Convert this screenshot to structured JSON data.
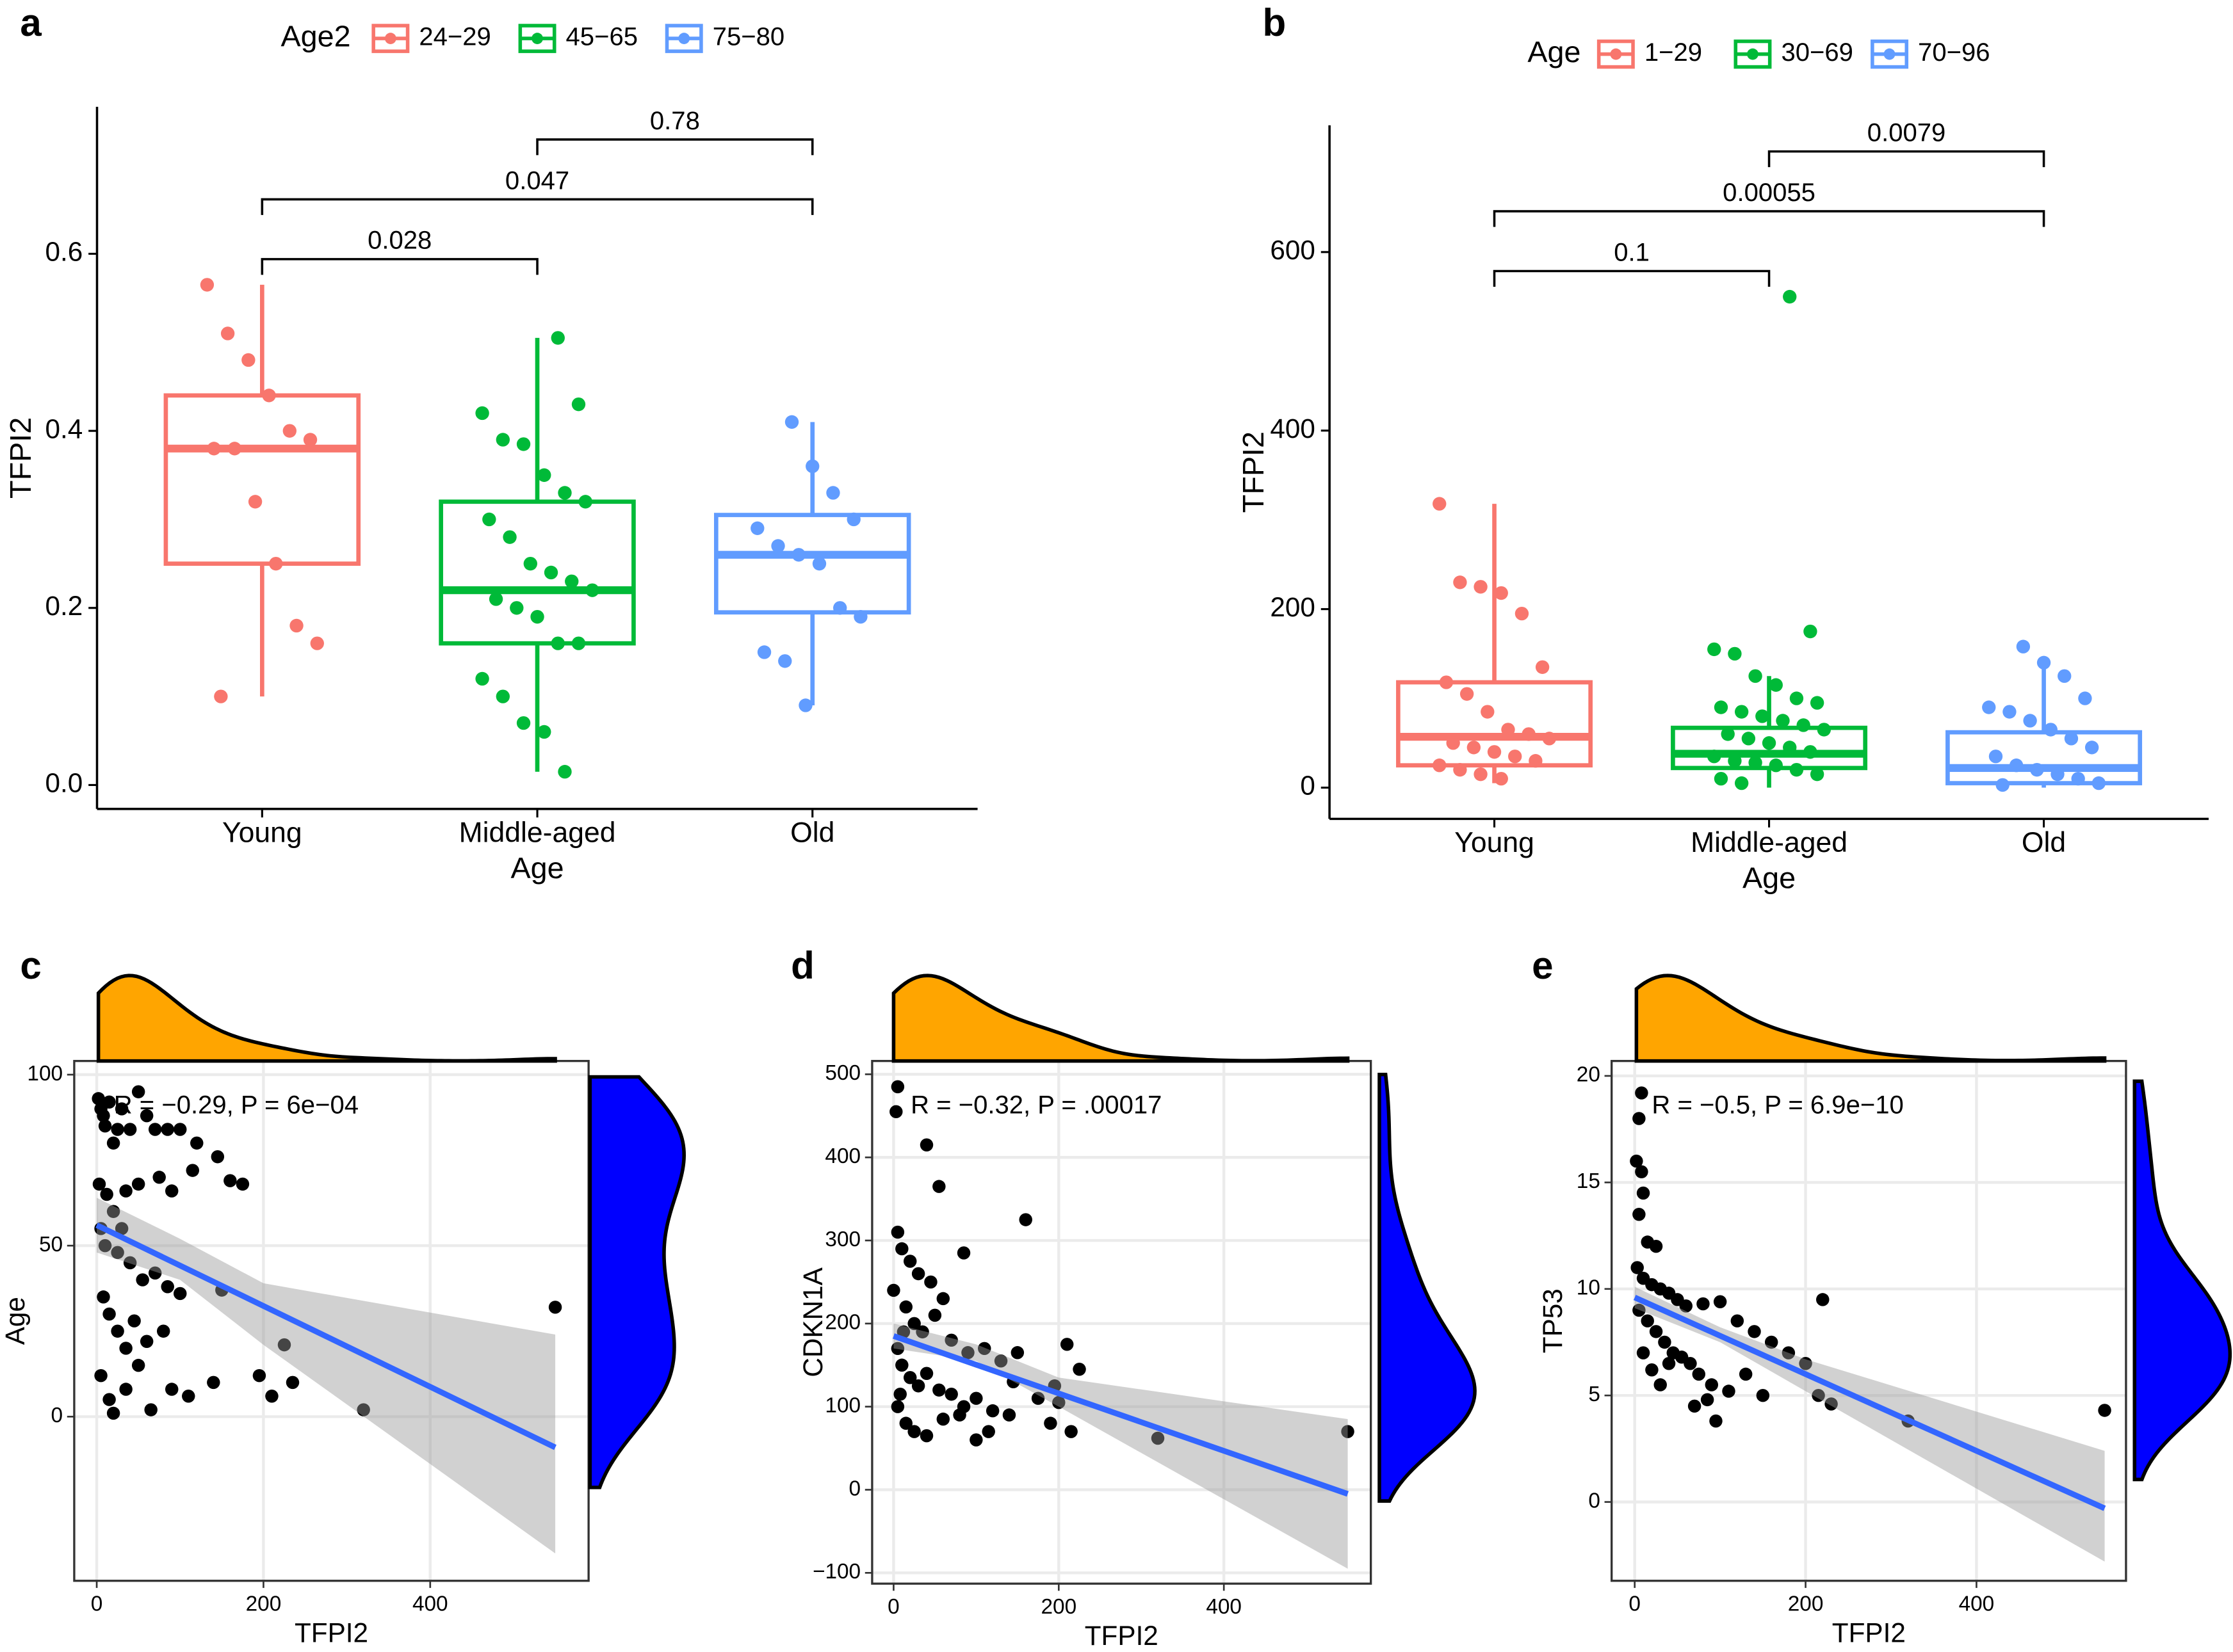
{
  "chart_data": [
    {
      "type": "box",
      "panel": "a",
      "xlabel": "Age",
      "ylabel": "TFPI2",
      "legend_title": "Age2",
      "categories": [
        "Young",
        "Middle-aged",
        "Old"
      ],
      "ylim": [
        -0.027,
        0.766
      ],
      "yticks": [
        {
          "value": 0,
          "label": "0.0"
        },
        0.2,
        0.4,
        0.6
      ],
      "series": [
        {
          "name": "24−29",
          "color": "#F8766D",
          "box": {
            "whislo": 0.1,
            "q1": 0.25,
            "med": 0.38,
            "q3": 0.44,
            "whishi": 0.565
          },
          "points": [
            0.565,
            0.51,
            0.48,
            0.44,
            0.4,
            0.39,
            0.38,
            0.38,
            0.32,
            0.25,
            0.18,
            0.16,
            0.1
          ]
        },
        {
          "name": "45−65",
          "color": "#00BA38",
          "box": {
            "whislo": 0.015,
            "q1": 0.16,
            "med": 0.22,
            "q3": 0.32,
            "whishi": 0.505
          },
          "points": [
            0.505,
            0.43,
            0.42,
            0.39,
            0.385,
            0.35,
            0.33,
            0.32,
            0.3,
            0.28,
            0.25,
            0.24,
            0.23,
            0.22,
            0.21,
            0.2,
            0.19,
            0.16,
            0.16,
            0.12,
            0.1,
            0.07,
            0.06,
            0.015
          ]
        },
        {
          "name": "75−80",
          "color": "#619CFF",
          "box": {
            "whislo": 0.09,
            "q1": 0.195,
            "med": 0.26,
            "q3": 0.305,
            "whishi": 0.41
          },
          "points": [
            0.41,
            0.36,
            0.33,
            0.3,
            0.29,
            0.27,
            0.26,
            0.25,
            0.2,
            0.19,
            0.15,
            0.14,
            0.09
          ]
        }
      ],
      "comparisons": [
        {
          "from": "Young",
          "to": "Middle-aged",
          "label": "0.028"
        },
        {
          "from": "Young",
          "to": "Old",
          "label": "0.047"
        },
        {
          "from": "Middle-aged",
          "to": "Old",
          "label": "0.78"
        }
      ]
    },
    {
      "type": "box",
      "panel": "b",
      "xlabel": "Age",
      "ylabel": "TFPI2",
      "legend_title": "Age",
      "categories": [
        "Young",
        "Middle-aged",
        "Old"
      ],
      "ylim": [
        -35,
        742
      ],
      "yticks": [
        0,
        200,
        400,
        600
      ],
      "series": [
        {
          "name": "1−29",
          "color": "#F8766D",
          "box": {
            "whislo": 5,
            "q1": 25,
            "med": 57,
            "q3": 118,
            "whishi": 318
          },
          "points": [
            318,
            230,
            225,
            218,
            195,
            135,
            118,
            105,
            85,
            65,
            60,
            55,
            50,
            45,
            40,
            35,
            30,
            25,
            20,
            15,
            10
          ]
        },
        {
          "name": "30−69",
          "color": "#00BA38",
          "box": {
            "whislo": 0,
            "q1": 22,
            "med": 38,
            "q3": 67,
            "whishi": 125
          },
          "points": [
            550,
            175,
            155,
            150,
            125,
            115,
            100,
            95,
            90,
            85,
            80,
            75,
            70,
            65,
            60,
            55,
            50,
            45,
            40,
            35,
            30,
            28,
            25,
            20,
            15,
            10,
            5
          ]
        },
        {
          "name": "70−96",
          "color": "#619CFF",
          "box": {
            "whislo": 0,
            "q1": 5,
            "med": 22,
            "q3": 62,
            "whishi": 140
          },
          "points": [
            158,
            140,
            125,
            100,
            90,
            85,
            75,
            65,
            55,
            45,
            35,
            25,
            20,
            15,
            10,
            5,
            3
          ]
        }
      ],
      "comparisons": [
        {
          "from": "Young",
          "to": "Middle-aged",
          "label": "0.1"
        },
        {
          "from": "Young",
          "to": "Old",
          "label": "0.00055"
        },
        {
          "from": "Middle-aged",
          "to": "Old",
          "label": "0.0079"
        }
      ]
    },
    {
      "type": "scatter",
      "panel": "c",
      "xlabel": "TFPI2",
      "ylabel": "Age",
      "annotation": "R = −0.29, P = 6e−04",
      "color": "#000000",
      "grid": true,
      "marginal_colors": {
        "x": "#FFA500",
        "y": "#0000FF"
      },
      "xlim": [
        -27,
        590
      ],
      "ylim": [
        -48,
        104
      ],
      "xticks": [
        0,
        200,
        400
      ],
      "yticks": [
        0,
        50,
        100
      ],
      "x": [
        2,
        5,
        8,
        10,
        15,
        20,
        25,
        30,
        40,
        50,
        60,
        70,
        85,
        100,
        120,
        145,
        160,
        175,
        3,
        12,
        20,
        35,
        50,
        75,
        90,
        115,
        5,
        10,
        25,
        30,
        40,
        55,
        70,
        85,
        100,
        150,
        8,
        15,
        25,
        35,
        45,
        60,
        80,
        5,
        15,
        20,
        35,
        50,
        65,
        90,
        110,
        140,
        195,
        210,
        225,
        235,
        320,
        550
      ],
      "y": [
        93,
        90,
        88,
        85,
        92,
        80,
        84,
        90,
        84,
        95,
        88,
        84,
        84,
        84,
        80,
        76,
        69,
        68,
        68,
        65,
        60,
        66,
        68,
        70,
        66,
        72,
        55,
        50,
        48,
        55,
        45,
        40,
        42,
        38,
        36,
        37,
        35,
        30,
        25,
        20,
        28,
        22,
        25,
        12,
        5,
        1,
        8,
        15,
        2,
        8,
        6,
        10,
        12,
        6,
        21,
        10,
        2,
        32
      ],
      "fit": {
        "color": "#3366FF",
        "x": [
          0,
          550
        ],
        "y": [
          56,
          -9
        ]
      },
      "ci": {
        "color": "#999999",
        "x": [
          0,
          100,
          200,
          550
        ],
        "lower": [
          48,
          40,
          21,
          -40
        ],
        "upper": [
          64,
          52,
          39,
          24
        ]
      }
    },
    {
      "type": "scatter",
      "panel": "d",
      "xlabel": "TFPI2",
      "ylabel": "CDKN1A",
      "annotation": "R = −0.32, P = .00017",
      "color": "#000000",
      "grid": true,
      "marginal_colors": {
        "x": "#FFA500",
        "y": "#0000FF"
      },
      "xlim": [
        -26,
        578
      ],
      "ylim": [
        -113,
        516
      ],
      "xticks": [
        0,
        200,
        400
      ],
      "yticks": [
        {
          "value": -100,
          "label": "−100"
        },
        0,
        100,
        200,
        300,
        400,
        500
      ],
      "x": [
        5,
        3,
        40,
        55,
        160,
        5,
        10,
        20,
        30,
        45,
        85,
        60,
        0,
        15,
        25,
        35,
        50,
        70,
        90,
        110,
        130,
        150,
        210,
        225,
        5,
        10,
        20,
        30,
        40,
        55,
        70,
        85,
        100,
        120,
        145,
        175,
        195,
        200,
        5,
        15,
        25,
        40,
        60,
        80,
        100,
        115,
        140,
        190,
        215,
        320,
        550,
        8,
        12
      ],
      "y": [
        485,
        455,
        415,
        365,
        325,
        310,
        290,
        275,
        260,
        250,
        285,
        230,
        240,
        220,
        200,
        190,
        210,
        180,
        165,
        170,
        155,
        165,
        175,
        145,
        170,
        150,
        135,
        125,
        140,
        120,
        115,
        100,
        110,
        95,
        130,
        110,
        125,
        105,
        100,
        80,
        70,
        65,
        85,
        90,
        60,
        70,
        90,
        80,
        70,
        62,
        70,
        115,
        190
      ],
      "fit": {
        "color": "#3366FF",
        "x": [
          0,
          550
        ],
        "y": [
          185,
          -5
        ]
      },
      "ci": {
        "color": "#999999",
        "x": [
          0,
          100,
          200,
          550
        ],
        "lower": [
          170,
          155,
          100,
          -95
        ],
        "upper": [
          200,
          175,
          135,
          85
        ]
      }
    },
    {
      "type": "scatter",
      "panel": "e",
      "xlabel": "TFPI2",
      "ylabel": "TP53",
      "annotation": "R = −0.5, P = 6.9e−10",
      "color": "#000000",
      "grid": true,
      "marginal_colors": {
        "x": "#FFA500",
        "y": "#0000FF"
      },
      "xlim": [
        -27,
        575
      ],
      "ylim": [
        -3.7,
        20.7
      ],
      "xticks": [
        0,
        200,
        400
      ],
      "yticks": [
        0,
        5,
        10,
        15,
        20
      ],
      "x": [
        8,
        5,
        2,
        8,
        10,
        5,
        15,
        25,
        3,
        10,
        20,
        30,
        40,
        50,
        60,
        80,
        100,
        120,
        140,
        160,
        180,
        5,
        15,
        25,
        35,
        45,
        55,
        65,
        75,
        90,
        110,
        130,
        150,
        200,
        215,
        230,
        220,
        95,
        320,
        550,
        10,
        20,
        30,
        40,
        70,
        85
      ],
      "y": [
        19.2,
        18,
        16,
        15.5,
        14.5,
        13.5,
        12.2,
        12,
        11,
        10.5,
        10.2,
        10,
        9.8,
        9.5,
        9.2,
        9.3,
        9.4,
        8.5,
        8,
        7.5,
        7,
        9,
        8.5,
        8,
        7.5,
        7,
        6.8,
        6.5,
        6,
        5.5,
        5.2,
        6,
        5,
        6.5,
        5,
        4.6,
        9.5,
        3.8,
        3.8,
        4.3,
        7,
        6.2,
        5.5,
        6.5,
        4.5,
        4.8
      ],
      "fit": {
        "color": "#3366FF",
        "x": [
          0,
          550
        ],
        "y": [
          9.6,
          -0.3
        ]
      },
      "ci": {
        "color": "#999999",
        "x": [
          0,
          100,
          200,
          550
        ],
        "lower": [
          9.1,
          7.5,
          5.2,
          -2.8
        ],
        "upper": [
          10.1,
          8.2,
          6.7,
          2.4
        ]
      }
    }
  ]
}
